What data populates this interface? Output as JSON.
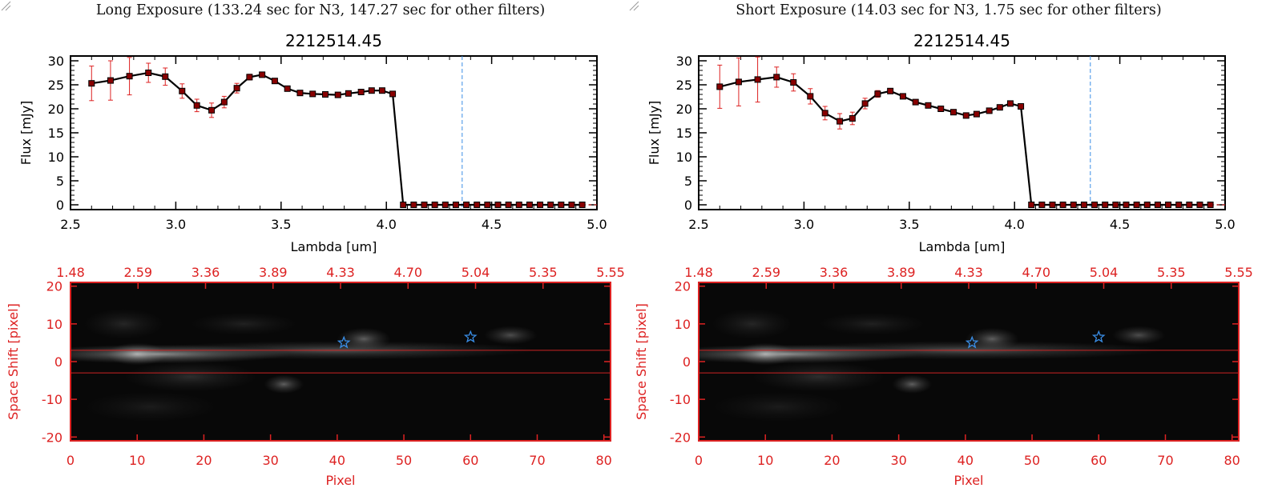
{
  "panels": [
    {
      "exposure_title": "Long Exposure (133.24 sec for N3, 147.27 sec for other filters)",
      "plot_title": "2212514.45",
      "xlabel": "Lambda [um]",
      "ylabel": "Flux [mJy]",
      "image_xlabel": "Pixel",
      "image_ylabel": "Space Shift [pixel]"
    },
    {
      "exposure_title": "Short Exposure (14.03 sec for N3, 1.75 sec for other filters)",
      "plot_title": "2212514.45",
      "xlabel": "Lambda [um]",
      "ylabel": "Flux [mJy]",
      "image_xlabel": "Pixel",
      "image_ylabel": "Space Shift [pixel]"
    }
  ],
  "colors": {
    "axis": "#000000",
    "errorbar": "#dd2222",
    "marker": "#880000",
    "accent_red": "#dd2222",
    "cutoff_line": "#3a8ee6",
    "star": "#3a8ee6"
  },
  "chart_data": [
    {
      "type": "line",
      "title": "2212514.45",
      "xlabel": "Lambda [um]",
      "ylabel": "Flux [mJy]",
      "xlim": [
        2.5,
        5.0
      ],
      "ylim": [
        -1,
        31
      ],
      "xticks": [
        "2.5",
        "3.0",
        "3.5",
        "4.0",
        "4.5",
        "5.0"
      ],
      "yticks": [
        "0",
        "5",
        "10",
        "15",
        "20",
        "25",
        "30"
      ],
      "vline": 4.36,
      "x": [
        2.6,
        2.69,
        2.78,
        2.87,
        2.95,
        3.03,
        3.1,
        3.17,
        3.23,
        3.29,
        3.35,
        3.41,
        3.47,
        3.53,
        3.59,
        3.65,
        3.71,
        3.77,
        3.82,
        3.88,
        3.93,
        3.98,
        4.03,
        4.08,
        4.13,
        4.18,
        4.23,
        4.28,
        4.33,
        4.38,
        4.43,
        4.48,
        4.53,
        4.58,
        4.63,
        4.68,
        4.73,
        4.78,
        4.83,
        4.88,
        4.93
      ],
      "y": [
        25.3,
        25.9,
        26.8,
        27.5,
        26.7,
        23.7,
        20.7,
        19.7,
        21.4,
        24.3,
        26.6,
        27.1,
        25.8,
        24.2,
        23.3,
        23.1,
        23.0,
        22.9,
        23.2,
        23.5,
        23.8,
        23.8,
        23.1,
        0,
        0,
        0,
        0,
        0,
        0,
        0,
        0,
        0,
        0,
        0,
        0,
        0,
        0,
        0,
        0,
        0,
        0
      ],
      "yerr": [
        3.6,
        4.1,
        3.9,
        2.0,
        1.8,
        1.5,
        1.3,
        1.5,
        1.2,
        1.0,
        0.6,
        0.5,
        0.5,
        0.3,
        0.3,
        0.3,
        0.3,
        0.3,
        0.3,
        0.3,
        0.3,
        0.3,
        0.3,
        0,
        0,
        0,
        0,
        0,
        0,
        0,
        0,
        0,
        0,
        0,
        0,
        0,
        0,
        0,
        0,
        0,
        0
      ]
    },
    {
      "type": "heatmap",
      "xlabel": "Pixel",
      "ylabel": "Space Shift [pixel]",
      "xlim": [
        0,
        81
      ],
      "ylim": [
        -21,
        21
      ],
      "xticks": [
        "0",
        "10",
        "20",
        "30",
        "40",
        "50",
        "60",
        "70",
        "80"
      ],
      "yticks": [
        "-20",
        "-10",
        "0",
        "10",
        "20"
      ],
      "top_axis_ticks": [
        "1.48",
        "2.59",
        "3.36",
        "3.89",
        "4.33",
        "4.70",
        "5.04",
        "5.35",
        "5.55"
      ],
      "hlines": [
        3,
        -3
      ],
      "stars": [
        {
          "x": 41,
          "y": 5
        },
        {
          "x": 60,
          "y": 6.5
        }
      ],
      "blobs": [
        {
          "x": 13,
          "y": 2,
          "sx": 20,
          "sy": 2.5,
          "a": 0.55
        },
        {
          "x": 10,
          "y": 2,
          "sx": 4.5,
          "sy": 3,
          "a": 0.45
        },
        {
          "x": 40,
          "y": 3,
          "sx": 30,
          "sy": 2.5,
          "a": 0.3
        },
        {
          "x": 44,
          "y": 6,
          "sx": 4,
          "sy": 3,
          "a": 0.35
        },
        {
          "x": 66,
          "y": 7,
          "sx": 4,
          "sy": 2.5,
          "a": 0.28
        },
        {
          "x": 32,
          "y": -6,
          "sx": 3,
          "sy": 2.5,
          "a": 0.35
        },
        {
          "x": 18,
          "y": -4,
          "sx": 10,
          "sy": 4,
          "a": 0.15
        },
        {
          "x": 8,
          "y": 10,
          "sx": 6,
          "sy": 4,
          "a": 0.12
        },
        {
          "x": 26,
          "y": 10,
          "sx": 8,
          "sy": 3,
          "a": 0.1
        },
        {
          "x": 12,
          "y": -12,
          "sx": 10,
          "sy": 4,
          "a": 0.08
        }
      ]
    },
    {
      "type": "line",
      "title": "2212514.45",
      "xlabel": "Lambda [um]",
      "ylabel": "Flux [mJy]",
      "xlim": [
        2.5,
        5.0
      ],
      "ylim": [
        -1,
        31
      ],
      "xticks": [
        "2.5",
        "3.0",
        "3.5",
        "4.0",
        "4.5",
        "5.0"
      ],
      "yticks": [
        "0",
        "5",
        "10",
        "15",
        "20",
        "25",
        "30"
      ],
      "vline": 4.36,
      "x": [
        2.6,
        2.69,
        2.78,
        2.87,
        2.95,
        3.03,
        3.1,
        3.17,
        3.23,
        3.29,
        3.35,
        3.41,
        3.47,
        3.53,
        3.59,
        3.65,
        3.71,
        3.77,
        3.82,
        3.88,
        3.93,
        3.98,
        4.03,
        4.08,
        4.13,
        4.18,
        4.23,
        4.28,
        4.33,
        4.38,
        4.43,
        4.48,
        4.53,
        4.58,
        4.63,
        4.68,
        4.73,
        4.78,
        4.83,
        4.88,
        4.93
      ],
      "y": [
        24.6,
        25.6,
        26.1,
        26.6,
        25.5,
        22.6,
        19.1,
        17.4,
        18.0,
        21.1,
        23.1,
        23.7,
        22.6,
        21.4,
        20.7,
        20.0,
        19.3,
        18.6,
        18.9,
        19.6,
        20.3,
        21.1,
        20.5,
        0,
        0,
        0,
        0,
        0,
        0,
        0,
        0,
        0,
        0,
        0,
        0,
        0,
        0,
        0,
        0,
        0,
        0
      ],
      "yerr": [
        4.5,
        5.0,
        4.7,
        2.1,
        1.8,
        1.6,
        1.4,
        1.6,
        1.3,
        1.1,
        0.7,
        0.5,
        0.5,
        0.3,
        0.3,
        0.3,
        0.3,
        0.3,
        0.3,
        0.3,
        0.3,
        0.3,
        0.3,
        0,
        0,
        0,
        0,
        0,
        0,
        0,
        0,
        0,
        0,
        0,
        0,
        0,
        0,
        0,
        0,
        0,
        0
      ]
    },
    {
      "type": "heatmap",
      "xlabel": "Pixel",
      "ylabel": "Space Shift [pixel]",
      "xlim": [
        0,
        81
      ],
      "ylim": [
        -21,
        21
      ],
      "xticks": [
        "0",
        "10",
        "20",
        "30",
        "40",
        "50",
        "60",
        "70",
        "80"
      ],
      "yticks": [
        "-20",
        "-10",
        "0",
        "10",
        "20"
      ],
      "top_axis_ticks": [
        "1.48",
        "2.59",
        "3.36",
        "3.89",
        "4.33",
        "4.70",
        "5.04",
        "5.35",
        "5.55"
      ],
      "hlines": [
        3,
        -3
      ],
      "stars": [
        {
          "x": 41,
          "y": 5
        },
        {
          "x": 60,
          "y": 6.5
        }
      ],
      "blobs": [
        {
          "x": 13,
          "y": 2,
          "sx": 20,
          "sy": 2.5,
          "a": 0.55
        },
        {
          "x": 10,
          "y": 2,
          "sx": 4.5,
          "sy": 3,
          "a": 0.45
        },
        {
          "x": 40,
          "y": 3,
          "sx": 30,
          "sy": 2.5,
          "a": 0.3
        },
        {
          "x": 44,
          "y": 6,
          "sx": 4,
          "sy": 3,
          "a": 0.35
        },
        {
          "x": 66,
          "y": 7,
          "sx": 4,
          "sy": 2.5,
          "a": 0.28
        },
        {
          "x": 32,
          "y": -6,
          "sx": 3,
          "sy": 2.5,
          "a": 0.35
        },
        {
          "x": 18,
          "y": -4,
          "sx": 10,
          "sy": 4,
          "a": 0.15
        },
        {
          "x": 8,
          "y": 10,
          "sx": 6,
          "sy": 4,
          "a": 0.12
        },
        {
          "x": 26,
          "y": 10,
          "sx": 8,
          "sy": 3,
          "a": 0.1
        },
        {
          "x": 12,
          "y": -12,
          "sx": 10,
          "sy": 4,
          "a": 0.08
        }
      ]
    }
  ]
}
